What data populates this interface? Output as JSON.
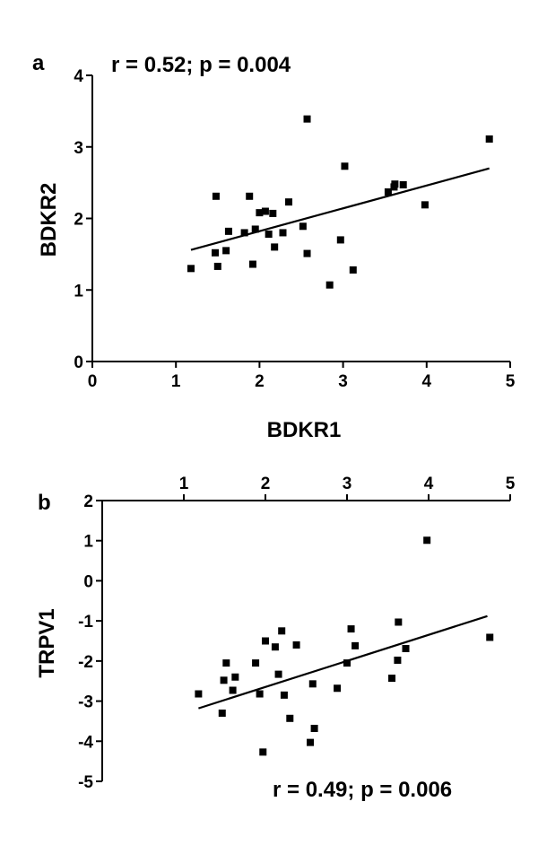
{
  "chart_data": [
    {
      "type": "scatter",
      "panel_label": "a",
      "annotation": "r = 0.52; p = 0.004",
      "xlabel": "BDKR1",
      "ylabel": "BDKR2",
      "xlim": [
        0,
        5
      ],
      "ylim": [
        0,
        4
      ],
      "xticks": [
        "0",
        "1",
        "2",
        "3",
        "4",
        "5"
      ],
      "yticks": [
        "0",
        "1",
        "2",
        "3",
        "4"
      ],
      "x_axis_position": "bottom",
      "grid": false,
      "points": [
        {
          "x": 1.18,
          "y": 1.3
        },
        {
          "x": 1.47,
          "y": 1.52
        },
        {
          "x": 1.48,
          "y": 2.31
        },
        {
          "x": 1.5,
          "y": 1.33
        },
        {
          "x": 1.6,
          "y": 1.55
        },
        {
          "x": 1.63,
          "y": 1.82
        },
        {
          "x": 1.82,
          "y": 1.8
        },
        {
          "x": 1.88,
          "y": 2.31
        },
        {
          "x": 1.92,
          "y": 1.36
        },
        {
          "x": 1.95,
          "y": 1.85
        },
        {
          "x": 2.0,
          "y": 2.08
        },
        {
          "x": 2.07,
          "y": 2.1
        },
        {
          "x": 2.11,
          "y": 1.78
        },
        {
          "x": 2.16,
          "y": 2.07
        },
        {
          "x": 2.18,
          "y": 1.6
        },
        {
          "x": 2.28,
          "y": 1.8
        },
        {
          "x": 2.35,
          "y": 2.23
        },
        {
          "x": 2.52,
          "y": 1.89
        },
        {
          "x": 2.57,
          "y": 3.39
        },
        {
          "x": 2.57,
          "y": 1.51
        },
        {
          "x": 2.84,
          "y": 1.07
        },
        {
          "x": 2.97,
          "y": 1.7
        },
        {
          "x": 3.02,
          "y": 2.73
        },
        {
          "x": 3.12,
          "y": 1.28
        },
        {
          "x": 3.54,
          "y": 2.37
        },
        {
          "x": 3.61,
          "y": 2.44
        },
        {
          "x": 3.62,
          "y": 2.48
        },
        {
          "x": 3.72,
          "y": 2.47
        },
        {
          "x": 3.98,
          "y": 2.19
        },
        {
          "x": 4.75,
          "y": 3.11
        }
      ],
      "fit_line": {
        "x": [
          1.18,
          4.75
        ],
        "y": [
          1.56,
          2.7
        ]
      }
    },
    {
      "type": "scatter",
      "panel_label": "b",
      "annotation": "r = 0.49; p = 0.006",
      "xlabel": "",
      "ylabel": "TRPV1",
      "xlim": [
        0,
        5
      ],
      "ylim": [
        -5,
        2
      ],
      "xticks": [
        "1",
        "2",
        "3",
        "4",
        "5"
      ],
      "yticks": [
        "-5",
        "-4",
        "-3",
        "-2",
        "-1",
        "0",
        "1",
        "2"
      ],
      "x_axis_position": "top",
      "grid": false,
      "points": [
        {
          "x": 1.18,
          "y": -2.82
        },
        {
          "x": 1.47,
          "y": -3.3
        },
        {
          "x": 1.49,
          "y": -2.48
        },
        {
          "x": 1.52,
          "y": -2.05
        },
        {
          "x": 1.6,
          "y": -2.73
        },
        {
          "x": 1.63,
          "y": -2.4
        },
        {
          "x": 1.88,
          "y": -2.05
        },
        {
          "x": 1.93,
          "y": -2.82
        },
        {
          "x": 1.97,
          "y": -4.27
        },
        {
          "x": 2.0,
          "y": -1.5
        },
        {
          "x": 2.12,
          "y": -1.65
        },
        {
          "x": 2.16,
          "y": -2.33
        },
        {
          "x": 2.2,
          "y": -1.25
        },
        {
          "x": 2.23,
          "y": -2.85
        },
        {
          "x": 2.3,
          "y": -3.43
        },
        {
          "x": 2.38,
          "y": -1.6
        },
        {
          "x": 2.55,
          "y": -4.03
        },
        {
          "x": 2.58,
          "y": -2.57
        },
        {
          "x": 2.6,
          "y": -3.68
        },
        {
          "x": 2.88,
          "y": -2.68
        },
        {
          "x": 3.0,
          "y": -2.05
        },
        {
          "x": 3.05,
          "y": -1.2
        },
        {
          "x": 3.1,
          "y": -1.62
        },
        {
          "x": 3.55,
          "y": -2.43
        },
        {
          "x": 3.62,
          "y": -1.98
        },
        {
          "x": 3.63,
          "y": -1.03
        },
        {
          "x": 3.72,
          "y": -1.69
        },
        {
          "x": 3.98,
          "y": 1.01
        },
        {
          "x": 4.75,
          "y": -1.41
        }
      ],
      "fit_line": {
        "x": [
          1.18,
          4.72
        ],
        "y": [
          -3.18,
          -0.88
        ]
      }
    }
  ]
}
